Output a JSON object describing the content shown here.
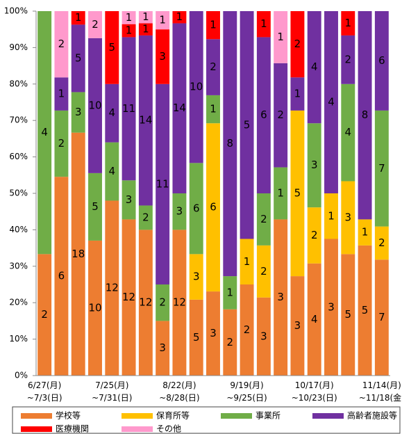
{
  "chart_data": {
    "type": "bar",
    "stacking": "percent",
    "categories": [
      "6/27(月)\n~7/3(日)",
      null,
      null,
      null,
      "7/25(月)\n~7/31(日)",
      null,
      null,
      null,
      "8/22(月)\n~8/28(日)",
      null,
      null,
      null,
      "9/19(月)\n~9/25(日)",
      null,
      null,
      null,
      "10/17(月)\n~10/23(日)",
      null,
      null,
      null,
      "11/14(月)\n~11/18(金)"
    ],
    "series": [
      {
        "name": "学校等",
        "color": "#ed7d31",
        "values": [
          2,
          6,
          18,
          10,
          12,
          12,
          12,
          3,
          12,
          5,
          3,
          2,
          2,
          3,
          3,
          3,
          4,
          3,
          5,
          5,
          7
        ]
      },
      {
        "name": "保育所等",
        "color": "#ffc000",
        "values": [
          0,
          0,
          0,
          0,
          0,
          0,
          0,
          0,
          0,
          3,
          6,
          0,
          1,
          2,
          0,
          5,
          2,
          1,
          3,
          1,
          2
        ]
      },
      {
        "name": "事業所",
        "color": "#70ad47",
        "values": [
          4,
          2,
          3,
          5,
          4,
          3,
          2,
          2,
          3,
          6,
          1,
          1,
          0,
          2,
          1,
          0,
          3,
          0,
          4,
          0,
          7
        ]
      },
      {
        "name": "高齢者施設等",
        "color": "#7030a0",
        "values": [
          0,
          1,
          5,
          10,
          4,
          11,
          14,
          11,
          14,
          10,
          2,
          8,
          5,
          6,
          2,
          1,
          4,
          4,
          2,
          8,
          6
        ]
      },
      {
        "name": "医療機関",
        "color": "#ff0000",
        "values": [
          0,
          0,
          1,
          0,
          5,
          1,
          1,
          3,
          1,
          0,
          1,
          0,
          0,
          1,
          0,
          2,
          0,
          0,
          1,
          0,
          0
        ]
      },
      {
        "name": "その他",
        "color": "#ff99cc",
        "values": [
          0,
          2,
          0,
          2,
          0,
          1,
          1,
          1,
          0,
          0,
          0,
          0,
          0,
          0,
          1,
          0,
          0,
          0,
          0,
          0,
          0
        ]
      }
    ],
    "ylim": [
      0,
      100
    ],
    "yticks": [
      {
        "value": 0,
        "label": "0%"
      },
      {
        "value": 10,
        "label": "10%"
      },
      {
        "value": 20,
        "label": "20%"
      },
      {
        "value": 30,
        "label": "30%"
      },
      {
        "value": 40,
        "label": "40%"
      },
      {
        "value": 50,
        "label": "50%"
      },
      {
        "value": 60,
        "label": "60%"
      },
      {
        "value": 70,
        "label": "70%"
      },
      {
        "value": 80,
        "label": "80%"
      },
      {
        "value": 90,
        "label": "90%"
      },
      {
        "value": 100,
        "label": "100%"
      }
    ],
    "grid": false,
    "legend": "bottom"
  }
}
